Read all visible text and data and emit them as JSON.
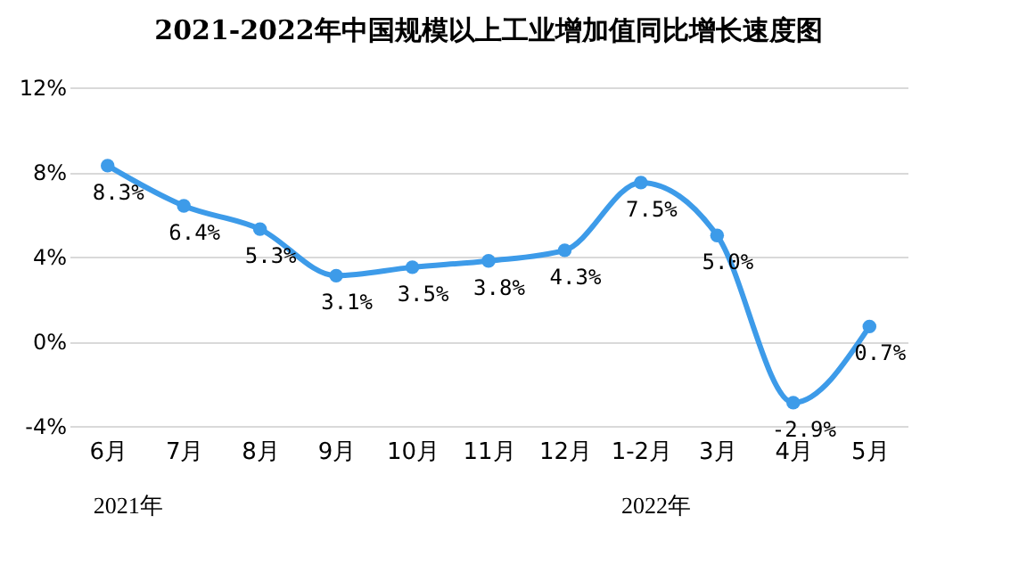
{
  "chart_data": {
    "type": "line",
    "title": "2021-2022年中国规模以上工业增加值同比增长速度图",
    "categories": [
      "6月",
      "7月",
      "8月",
      "9月",
      "10月",
      "11月",
      "12月",
      "1-2月",
      "3月",
      "4月",
      "5月"
    ],
    "series": [
      {
        "color": "#3d9be9",
        "values": [
          8.3,
          6.4,
          5.3,
          3.1,
          3.5,
          3.8,
          4.3,
          7.5,
          5.0,
          -2.9,
          0.7
        ]
      }
    ],
    "value_labels": [
      "8.3%",
      "6.4%",
      "5.3%",
      "3.1%",
      "3.5%",
      "3.8%",
      "4.3%",
      "7.5%",
      "5.0%",
      "-2.9%",
      "0.7%"
    ],
    "ylim": [
      -4,
      12
    ],
    "yticks": [
      {
        "value": -4,
        "label": "-4%"
      },
      {
        "value": 0,
        "label": "0%"
      },
      {
        "value": 4,
        "label": "4%"
      },
      {
        "value": 8,
        "label": "8%"
      },
      {
        "value": 12,
        "label": "12%"
      }
    ],
    "grid": "y",
    "marker": "circle",
    "line_style": "solid",
    "annotations": [
      "2021年",
      "2022年"
    ]
  }
}
